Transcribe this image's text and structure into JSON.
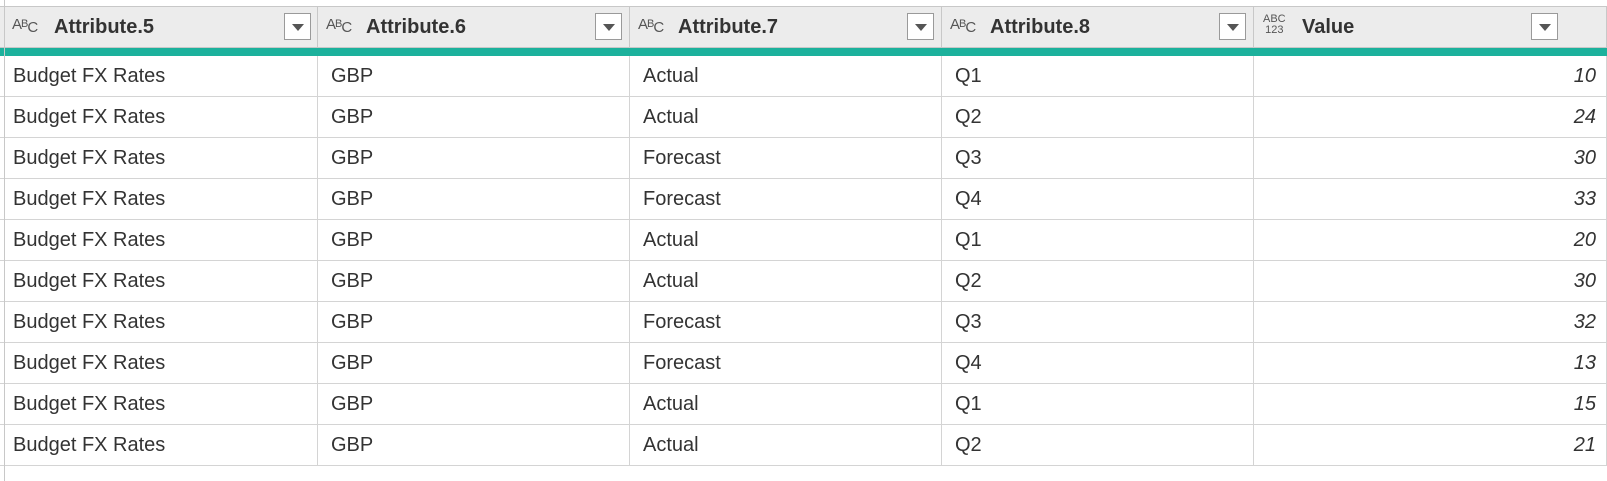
{
  "columns": [
    {
      "name": "Attribute.5",
      "type_icon": "text-type-icon",
      "type_glyph": {
        "a": "A",
        "b": "B",
        "c": "C"
      }
    },
    {
      "name": "Attribute.6",
      "type_icon": "text-type-icon",
      "type_glyph": {
        "a": "A",
        "b": "B",
        "c": "C"
      }
    },
    {
      "name": "Attribute.7",
      "type_icon": "text-type-icon",
      "type_glyph": {
        "a": "A",
        "b": "B",
        "c": "C"
      }
    },
    {
      "name": "Attribute.8",
      "type_icon": "text-type-icon",
      "type_glyph": {
        "a": "A",
        "b": "B",
        "c": "C"
      }
    },
    {
      "name": "Value",
      "type_icon": "any-type-icon",
      "type_glyph": {
        "top": "ABC",
        "bottom": "123"
      }
    }
  ],
  "accent_color": "#1cb19c",
  "rows": [
    [
      "Budget FX Rates",
      "GBP",
      "Actual",
      "Q1",
      "10"
    ],
    [
      "Budget FX Rates",
      "GBP",
      "Actual",
      "Q2",
      "24"
    ],
    [
      "Budget FX Rates",
      "GBP",
      "Forecast",
      "Q3",
      "30"
    ],
    [
      "Budget FX Rates",
      "GBP",
      "Forecast",
      "Q4",
      "33"
    ],
    [
      "Budget FX Rates",
      "GBP",
      "Actual",
      "Q1",
      "20"
    ],
    [
      "Budget FX Rates",
      "GBP",
      "Actual",
      "Q2",
      "30"
    ],
    [
      "Budget FX Rates",
      "GBP",
      "Forecast",
      "Q3",
      "32"
    ],
    [
      "Budget FX Rates",
      "GBP",
      "Forecast",
      "Q4",
      "13"
    ],
    [
      "Budget FX Rates",
      "GBP",
      "Actual",
      "Q1",
      "15"
    ],
    [
      "Budget FX Rates",
      "GBP",
      "Actual",
      "Q2",
      "21"
    ]
  ]
}
